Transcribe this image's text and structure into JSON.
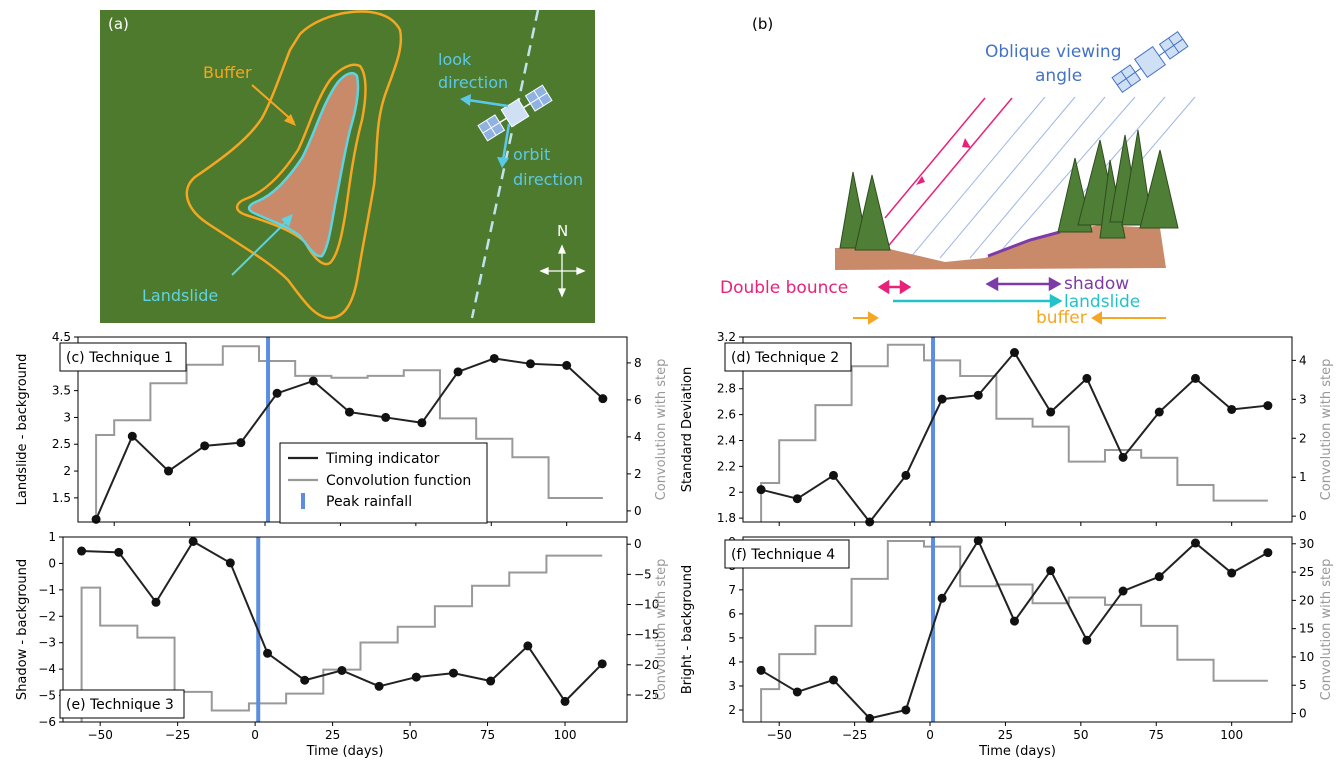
{
  "panel_a": {
    "label": "(a)",
    "buffer": "Buffer",
    "landslide": "Landslide",
    "look": [
      "look",
      "direction"
    ],
    "orbit": [
      "orbit",
      "direction"
    ],
    "north": "N",
    "colors": {
      "background": "#4d7a2c",
      "landslide_fill": "#c98a6a",
      "landslide_edge": "#5fd3e0",
      "buffer": "#f5a623",
      "look": "#5cc8e8",
      "orbit": "#bfe3ee"
    }
  },
  "panel_b": {
    "label": "(b)",
    "oblique": [
      "Oblique viewing",
      "angle"
    ],
    "double_bounce": "Double bounce",
    "shadow": "shadow",
    "landslide": "landslide",
    "buffer": "buffer",
    "colors": {
      "double_bounce": "#e8227a",
      "shadow": "#7e3aa6",
      "landslide": "#22c3c8",
      "buffer": "#f5a623",
      "oblique": "#4472c4",
      "ground": "#c98a6a",
      "tree": "#4f7f36"
    }
  },
  "chart_data": [
    {
      "type": "line",
      "panel_label": "(c) Technique 1",
      "ylabel": "Landslide - background",
      "y2label": "Convolution with step",
      "ylim": [
        1.05,
        4.5
      ],
      "y2lim": [
        -0.6,
        9.4
      ],
      "yticks": [
        1.5,
        2.0,
        2.5,
        3.0,
        3.5,
        4.0,
        4.5
      ],
      "y2ticks": [
        0,
        2,
        4,
        6,
        8
      ],
      "xlim": [
        -62,
        120
      ],
      "xticks": [
        -50,
        -25,
        0,
        25,
        50,
        75,
        100
      ],
      "show_xtick_labels": false,
      "peak_rainfall_x": 1,
      "series": [
        {
          "name": "Timing indicator",
          "x": [
            -56,
            -44,
            -32,
            -20,
            -8,
            4,
            16,
            28,
            40,
            52,
            64,
            76,
            88,
            100,
            112
          ],
          "values": [
            1.1,
            2.65,
            2.0,
            2.47,
            2.53,
            3.45,
            3.68,
            3.1,
            3.0,
            2.9,
            3.85,
            4.1,
            4.0,
            3.97,
            3.35
          ]
        },
        {
          "name": "Convolution function",
          "x": [
            -56,
            -44,
            -32,
            -20,
            -8,
            4,
            16,
            28,
            40,
            52,
            64,
            76,
            88,
            100,
            112
          ],
          "values": [
            4.1,
            4.9,
            6.9,
            7.9,
            8.9,
            8.1,
            7.3,
            7.2,
            7.3,
            7.6,
            5.0,
            3.9,
            2.9,
            0.7,
            0.7
          ]
        }
      ]
    },
    {
      "type": "line",
      "panel_label": "(d) Technique 2",
      "ylabel": "Standard Deviation",
      "y2label": "Convolution with step",
      "ylim": [
        1.77,
        3.2
      ],
      "y2lim": [
        -0.15,
        4.6
      ],
      "yticks": [
        1.8,
        2.0,
        2.2,
        2.4,
        2.6,
        2.8,
        3.0,
        3.2
      ],
      "y2ticks": [
        0,
        1,
        2,
        3,
        4
      ],
      "xlim": [
        -62,
        120
      ],
      "xticks": [
        -50,
        -25,
        0,
        25,
        50,
        75,
        100
      ],
      "show_xtick_labels": false,
      "peak_rainfall_x": 1,
      "series": [
        {
          "name": "Timing indicator",
          "x": [
            -56,
            -44,
            -32,
            -20,
            -8,
            4,
            16,
            28,
            40,
            52,
            64,
            76,
            88,
            100,
            112
          ],
          "values": [
            2.02,
            1.95,
            2.13,
            1.77,
            2.13,
            2.72,
            2.75,
            3.08,
            2.62,
            2.88,
            2.27,
            2.62,
            2.88,
            2.64,
            2.67
          ]
        },
        {
          "name": "Convolution function",
          "x": [
            -56,
            -44,
            -32,
            -20,
            -8,
            4,
            16,
            28,
            40,
            52,
            64,
            76,
            88,
            100,
            112
          ],
          "values": [
            0.85,
            1.95,
            2.85,
            3.85,
            4.4,
            4.0,
            3.6,
            2.5,
            2.3,
            1.4,
            1.7,
            1.5,
            0.8,
            0.4,
            0.4
          ]
        }
      ]
    },
    {
      "type": "line",
      "panel_label": "(e) Technique 3",
      "ylabel": "Shadow - background",
      "y2label": "Convolution with step",
      "ylim": [
        -6,
        1
      ],
      "y2lim": [
        -29.5,
        1.2
      ],
      "yticks": [
        -6,
        -5,
        -4,
        -3,
        -2,
        -1,
        0,
        1
      ],
      "y2ticks": [
        -25,
        -20,
        -15,
        -10,
        -5,
        0
      ],
      "xlim": [
        -62,
        120
      ],
      "xticks": [
        -50,
        -25,
        0,
        25,
        50,
        75,
        100
      ],
      "show_xtick_labels": true,
      "xlabel": "Time (days)",
      "peak_rainfall_x": 1,
      "series": [
        {
          "name": "Timing indicator",
          "x": [
            -56,
            -44,
            -32,
            -20,
            -8,
            4,
            16,
            28,
            40,
            52,
            64,
            76,
            88,
            100,
            112
          ],
          "values": [
            0.47,
            0.42,
            -1.47,
            0.83,
            0.02,
            -3.4,
            -4.42,
            -4.05,
            -4.65,
            -4.3,
            -4.15,
            -4.45,
            -3.12,
            -5.22,
            -3.8
          ]
        },
        {
          "name": "Convolution function",
          "x": [
            -56,
            -44,
            -32,
            -20,
            -8,
            4,
            16,
            28,
            40,
            52,
            64,
            76,
            88,
            100,
            112
          ],
          "values": [
            -7.2,
            -13.5,
            -15.5,
            -24.5,
            -27.6,
            -26.4,
            -24.8,
            -20.8,
            -16.3,
            -13.7,
            -10.3,
            -6.9,
            -4.7,
            -1.9,
            -1.9
          ]
        }
      ]
    },
    {
      "type": "line",
      "panel_label": "(f) Technique 4",
      "ylabel": "Bright - background",
      "y2label": "Convolution with step",
      "ylim": [
        1.5,
        9.2
      ],
      "y2lim": [
        -1.5,
        31.2
      ],
      "yticks": [
        2,
        3,
        4,
        5,
        6,
        7,
        8,
        9
      ],
      "y2ticks": [
        0,
        5,
        10,
        15,
        20,
        25,
        30
      ],
      "xlim": [
        -62,
        120
      ],
      "xticks": [
        -50,
        -25,
        0,
        25,
        50,
        75,
        100
      ],
      "show_xtick_labels": true,
      "xlabel": "Time (days)",
      "peak_rainfall_x": 1,
      "series": [
        {
          "name": "Timing indicator",
          "x": [
            -56,
            -44,
            -32,
            -20,
            -8,
            4,
            16,
            28,
            40,
            52,
            64,
            76,
            88,
            100,
            112
          ],
          "values": [
            3.65,
            2.75,
            3.25,
            1.65,
            2.0,
            6.65,
            9.05,
            5.7,
            7.8,
            4.9,
            6.95,
            7.55,
            8.95,
            7.7,
            8.55
          ]
        },
        {
          "name": "Convolution function",
          "x": [
            -56,
            -44,
            -32,
            -20,
            -8,
            4,
            16,
            28,
            40,
            52,
            64,
            76,
            88,
            100,
            112
          ],
          "values": [
            4.3,
            10.5,
            15.5,
            23.8,
            30.5,
            29.5,
            22.5,
            22.8,
            19.5,
            20.5,
            19.2,
            15.5,
            9.5,
            5.8,
            5.8
          ]
        }
      ]
    }
  ],
  "legend": {
    "items": [
      "Timing indicator",
      "Convolution function",
      "Peak rainfall"
    ],
    "colors": {
      "Timing indicator": "#222222",
      "Convolution function": "#999999",
      "Peak rainfall": "#5b8de0"
    },
    "placement": "inside panel (c), lower middle"
  }
}
